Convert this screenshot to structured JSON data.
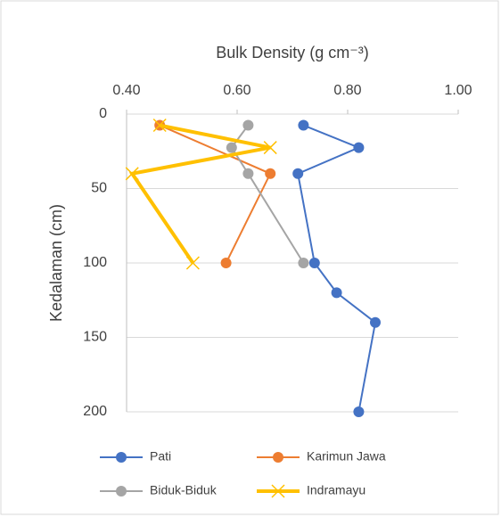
{
  "chart_data": {
    "type": "line",
    "xlabel": "Bulk Density (g cm⁻³)",
    "ylabel": "Kedalaman (cm)",
    "xlim": [
      0.4,
      1.0
    ],
    "xticks": [
      {
        "value": 0.4,
        "label": "0.40"
      },
      {
        "value": 0.6,
        "label": "0.60"
      },
      {
        "value": 0.8,
        "label": "0.80"
      },
      {
        "value": 1.0,
        "label": "1.00"
      }
    ],
    "ylim": [
      0,
      200
    ],
    "yticks": [
      0,
      50,
      100,
      150,
      200
    ],
    "y_inverted": true,
    "x_axis_position": "top",
    "grid": true,
    "legend": "bottom",
    "series": [
      {
        "name": "Pati",
        "color": "#4472c4",
        "marker": "circle",
        "line_width": 2,
        "x": [
          0.72,
          0.82,
          0.71,
          0.74,
          0.78,
          0.85,
          0.82
        ],
        "values": [
          7.5,
          22.5,
          40,
          100,
          120,
          140,
          200
        ]
      },
      {
        "name": "Karimun Jawa",
        "color": "#ed7d31",
        "marker": "circle",
        "line_width": 2,
        "x": [
          0.46,
          0.66,
          0.58
        ],
        "values": [
          7.5,
          40,
          100
        ]
      },
      {
        "name": "Biduk-Biduk",
        "color": "#a5a5a5",
        "marker": "circle",
        "line_width": 2,
        "x": [
          0.62,
          0.59,
          0.62,
          0.72
        ],
        "values": [
          7.5,
          22.5,
          40,
          100
        ]
      },
      {
        "name": "Indramayu",
        "color": "#ffc000",
        "marker": "x",
        "line_width": 4,
        "x": [
          0.46,
          0.66,
          0.41,
          0.52
        ],
        "values": [
          7.5,
          22.5,
          40,
          100
        ]
      }
    ]
  }
}
